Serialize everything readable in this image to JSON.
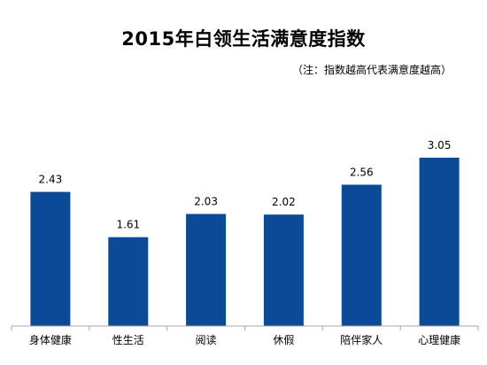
{
  "chart_data": {
    "type": "bar",
    "title": "2015年白领生活满意度指数",
    "subtitle": "（注：指数越高代表满意度越高）",
    "categories": [
      "身体健康",
      "性生活",
      "阅读",
      "休假",
      "陪伴家人",
      "心理健康"
    ],
    "values": [
      2.43,
      1.61,
      2.03,
      2.02,
      2.56,
      3.05
    ],
    "value_labels": [
      "2.43",
      "1.61",
      "2.03",
      "2.02",
      "2.56",
      "3.05"
    ],
    "ylim": [
      0,
      3.5
    ],
    "xlabel": "",
    "ylabel": "",
    "grid": false,
    "legend": "none",
    "bar_color": "#0a4a97",
    "axis_color": "#a6a6a6"
  }
}
